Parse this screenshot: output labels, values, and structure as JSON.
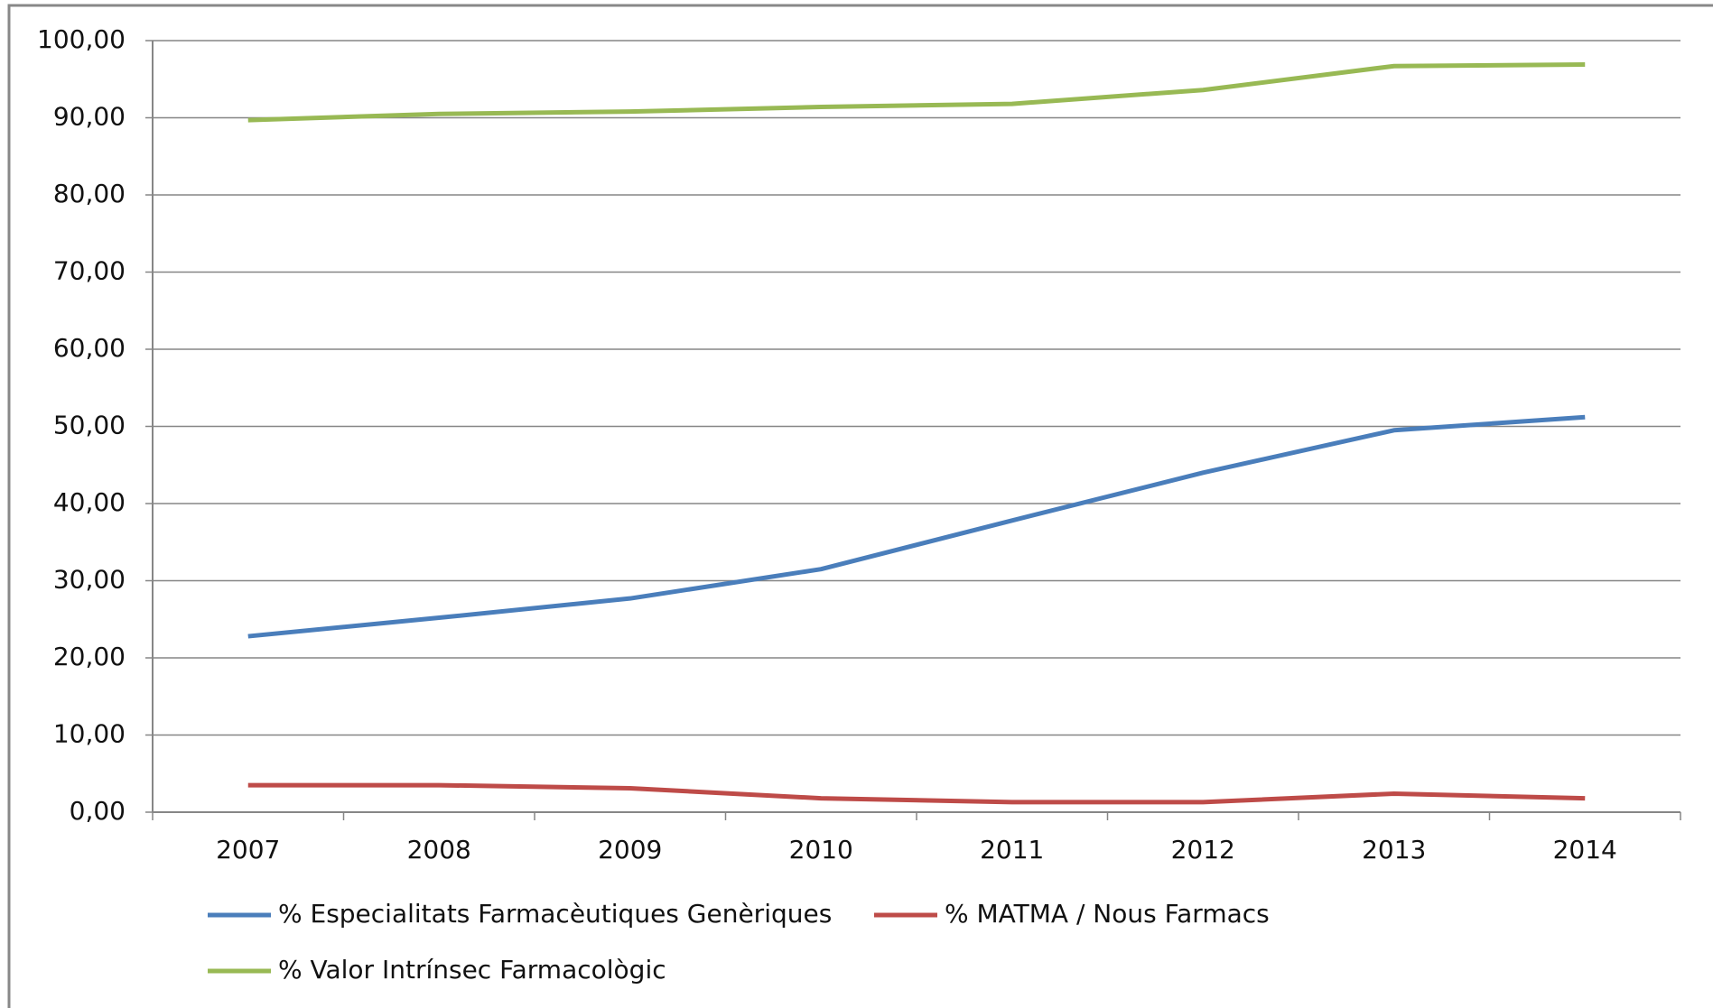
{
  "chart_data": {
    "type": "line",
    "categories": [
      "2007",
      "2008",
      "2009",
      "2010",
      "2011",
      "2012",
      "2013",
      "2014"
    ],
    "series": [
      {
        "name": "% Especialitats Farmacèutiques Genèriques",
        "color": "#4a7ebb",
        "values": [
          22.8,
          25.2,
          27.7,
          31.5,
          37.8,
          44.0,
          49.5,
          51.2
        ]
      },
      {
        "name": "% MATMA / Nous Farmacs",
        "color": "#be4b48",
        "values": [
          3.5,
          3.5,
          3.1,
          1.8,
          1.3,
          1.3,
          2.4,
          1.8
        ]
      },
      {
        "name": "% Valor Intrínsec Farmacològic",
        "color": "#98b954",
        "values": [
          89.7,
          90.5,
          90.8,
          91.4,
          91.8,
          93.6,
          96.7,
          96.9
        ]
      }
    ],
    "ylim": [
      0,
      100
    ],
    "yticks": [
      {
        "value": 0,
        "label": "0,00"
      },
      {
        "value": 10,
        "label": "10,00"
      },
      {
        "value": 20,
        "label": "20,00"
      },
      {
        "value": 30,
        "label": "30,00"
      },
      {
        "value": 40,
        "label": "40,00"
      },
      {
        "value": 50,
        "label": "50,00"
      },
      {
        "value": 60,
        "label": "60,00"
      },
      {
        "value": 70,
        "label": "70,00"
      },
      {
        "value": 80,
        "label": "80,00"
      },
      {
        "value": 90,
        "label": "90,00"
      },
      {
        "value": 100,
        "label": "100,00"
      }
    ],
    "grid": true
  }
}
